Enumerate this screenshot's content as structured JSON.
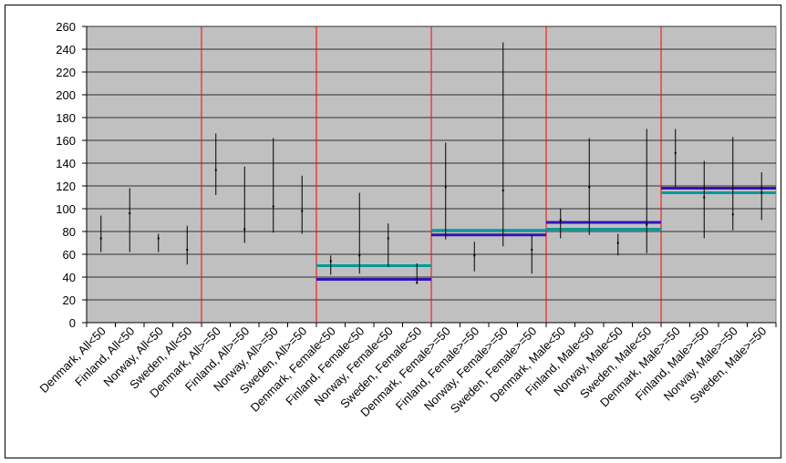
{
  "chart_data": {
    "type": "hi-lo",
    "categories": [
      "Denmark, All<50",
      "Finland, All<50",
      "Norway, All<50",
      "Sweden, All<50",
      "Denmark, All>=50",
      "Finland, All>=50",
      "Norway, All>=50",
      "Sweden, All>=50",
      "Denmark, Female<50",
      "Finland, Female<50",
      "Norway, Female<50",
      "Sweden, Female<50",
      "Denmark, Female>=50",
      "Finland, Female>=50",
      "Norway, Female>=50",
      "Sweden, Female>=50",
      "Denmark, Male<50",
      "Finland, Male<50",
      "Norway, Male<50",
      "Sweden, Male<50",
      "Denmark, Male>=50",
      "Finland, Male>=50",
      "Norway, Male>=50",
      "Sweden, Male>=50"
    ],
    "values": [
      74,
      96,
      74,
      64,
      134,
      82,
      102,
      98,
      54,
      59,
      74,
      35,
      119,
      59,
      116,
      64,
      90,
      119,
      70,
      86,
      149,
      110,
      95,
      114
    ],
    "high": [
      94,
      118,
      78,
      85,
      166,
      137,
      162,
      129,
      59,
      114,
      87,
      52,
      158,
      71,
      246,
      77,
      100,
      162,
      78,
      170,
      170,
      142,
      163,
      132
    ],
    "low": [
      62,
      62,
      62,
      51,
      112,
      70,
      79,
      78,
      42,
      43,
      49,
      34,
      73,
      45,
      67,
      43,
      74,
      77,
      59,
      61,
      119,
      74,
      81,
      90
    ],
    "color": "#000000",
    "group_lines": [
      {
        "color": "#009999",
        "values": [
          null,
          null,
          50,
          81,
          82,
          114
        ]
      },
      {
        "color": "#3311bb",
        "values": [
          null,
          null,
          38,
          77,
          88,
          118
        ]
      }
    ],
    "separator_color": "#ff0000",
    "plot_background": "#c0c0c0",
    "ylim": [
      0,
      260
    ],
    "yticks": [
      0,
      20,
      40,
      60,
      80,
      100,
      120,
      140,
      160,
      180,
      200,
      220,
      240,
      260
    ],
    "grid": true
  }
}
